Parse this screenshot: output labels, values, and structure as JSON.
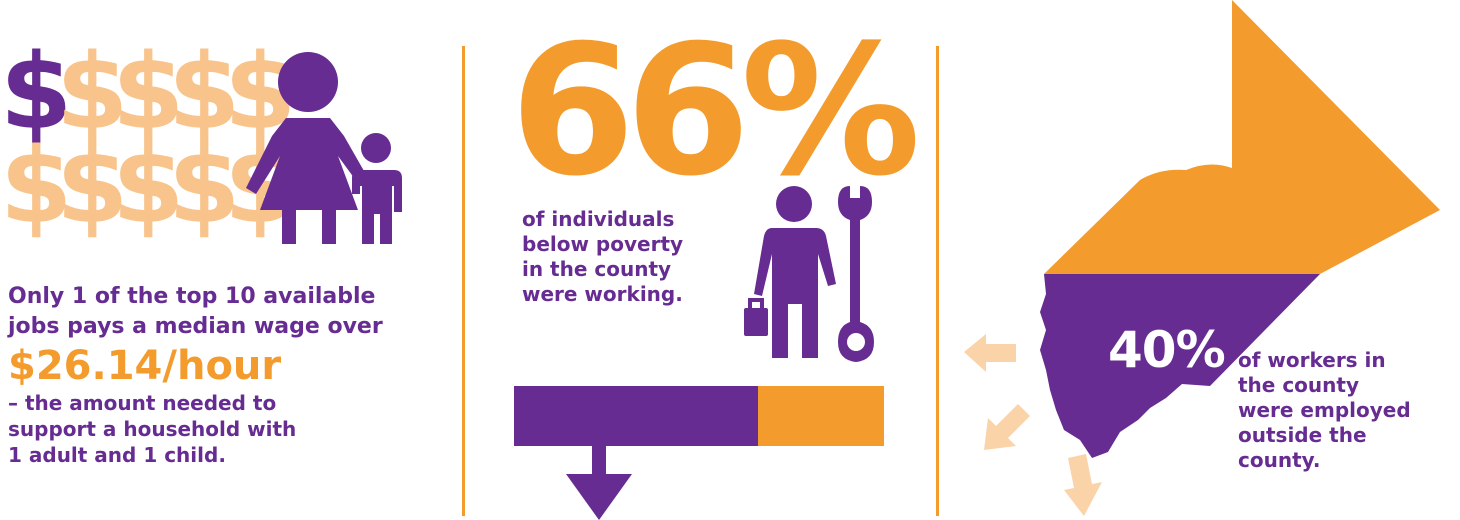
{
  "colors": {
    "purple": "#662c91",
    "orange": "#f39c2d",
    "light_orange": "#f8c48c",
    "peach": "#fbd3a8"
  },
  "panel_wage": {
    "dollar_sign": "$",
    "line1": "Only 1 of the top 10 available",
    "line2": "jobs pays a median wage over",
    "wage": "$26.14/hour",
    "sub1": "– the amount needed to",
    "sub2": "support a household with",
    "sub3": "1 adult and 1 child.",
    "icons": [
      "adult-icon",
      "child-icon",
      "dollar-icon"
    ]
  },
  "panel_poverty": {
    "percent": "66%",
    "line1": "of individuals",
    "line2": "below poverty",
    "line3": "in the county",
    "line4": "were working.",
    "bar_working_fraction": 0.66,
    "icons": [
      "worker-icon",
      "wrench-icon",
      "down-arrow-icon"
    ]
  },
  "panel_commute": {
    "percent": "40%",
    "line1": "of workers in",
    "line2": "the county",
    "line3": "were employed",
    "line4": "outside the",
    "line5": "county.",
    "map_fraction_outside": 0.4,
    "icons": [
      "county-map",
      "outbound-arrow-icon"
    ]
  }
}
